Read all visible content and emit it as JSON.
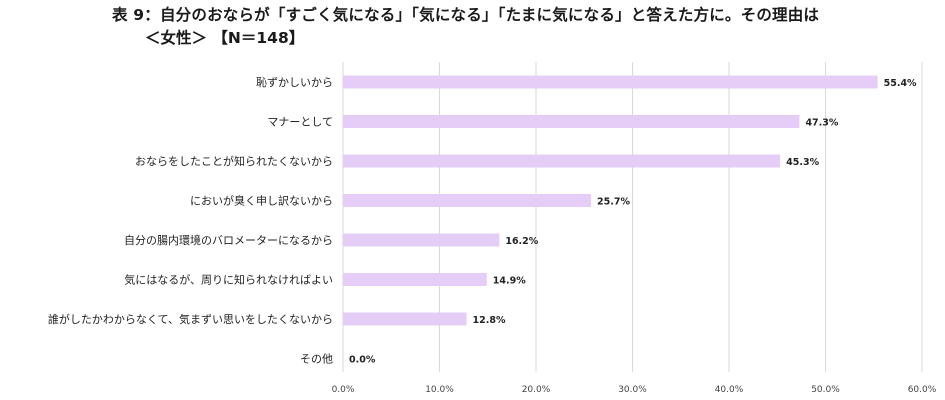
{
  "title": {
    "line1": "表 9：自分のおならが「すごく気になる」「気になる」「たまに気になる」と答えた方に。その理由は",
    "line2": "＜女性＞ 【N＝148】"
  },
  "colors": {
    "bar": "#e6cdf7",
    "grid": "#d9d9d9"
  },
  "chart_data": {
    "type": "bar",
    "orientation": "horizontal",
    "categories": [
      "恥ずかしいから",
      "マナーとして",
      "おならをしたことが知られたくないから",
      "においが臭く申し訳ないから",
      "自分の腸内環境のバロメーターになるから",
      "気にはなるが、周りに知られなければよい",
      "誰がしたかわからなくて、気まずい思いをしたくないから",
      "その他"
    ],
    "values": [
      55.4,
      47.3,
      45.3,
      25.7,
      16.2,
      14.9,
      12.8,
      0.0
    ],
    "value_labels": [
      "55.4%",
      "47.3%",
      "45.3%",
      "25.7%",
      "16.2%",
      "14.9%",
      "12.8%",
      "0.0%"
    ],
    "xlim": [
      0,
      60
    ],
    "ticks": [
      0,
      10,
      20,
      30,
      40,
      50,
      60
    ],
    "tick_labels": [
      "0.0%",
      "10.0%",
      "20.0%",
      "30.0%",
      "40.0%",
      "50.0%",
      "60.0%"
    ],
    "grid": true,
    "legend": false
  }
}
